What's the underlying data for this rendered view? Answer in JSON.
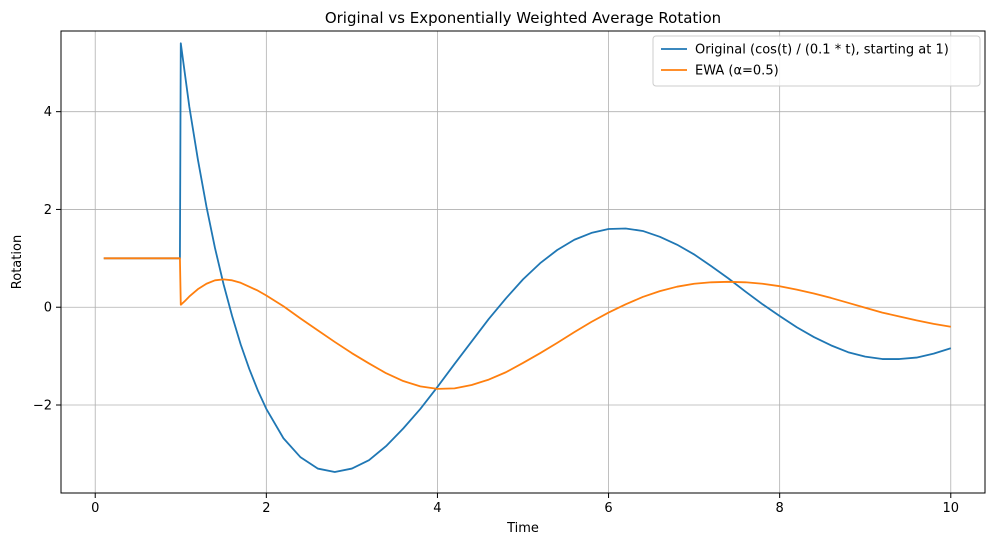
{
  "chart_data": {
    "type": "line",
    "title": "Original vs Exponentially Weighted Average Rotation",
    "xlabel": "Time",
    "ylabel": "Rotation",
    "xlim": [
      -0.4,
      10.4
    ],
    "ylim": [
      -3.8,
      5.65
    ],
    "x_ticks": [
      0,
      2,
      4,
      6,
      8,
      10
    ],
    "y_ticks": [
      -2,
      0,
      2,
      4
    ],
    "x_tick_labels": [
      "0",
      "2",
      "4",
      "6",
      "8",
      "10"
    ],
    "y_tick_labels": [
      "−2",
      "0",
      "2",
      "4"
    ],
    "grid": true,
    "legend_position": "top-right",
    "series": [
      {
        "name": "Original (cos(t) / (0.1 * t), starting at 1)",
        "color": "#1f77b4",
        "points": [
          [
            0.1,
            1.0
          ],
          [
            0.5,
            1.0
          ],
          [
            0.99,
            1.0
          ],
          [
            1.0,
            5.4
          ],
          [
            1.1,
            4.1
          ],
          [
            1.2,
            3.02
          ],
          [
            1.3,
            2.06
          ],
          [
            1.4,
            1.21
          ],
          [
            1.5,
            0.47
          ],
          [
            1.6,
            -0.18
          ],
          [
            1.7,
            -0.76
          ],
          [
            1.8,
            -1.26
          ],
          [
            1.9,
            -1.7
          ],
          [
            2.0,
            -2.08
          ],
          [
            2.2,
            -2.68
          ],
          [
            2.4,
            -3.07
          ],
          [
            2.6,
            -3.3
          ],
          [
            2.8,
            -3.37
          ],
          [
            3.0,
            -3.3
          ],
          [
            3.2,
            -3.13
          ],
          [
            3.4,
            -2.84
          ],
          [
            3.6,
            -2.48
          ],
          [
            3.8,
            -2.08
          ],
          [
            4.0,
            -1.63
          ],
          [
            4.2,
            -1.16
          ],
          [
            4.4,
            -0.7
          ],
          [
            4.6,
            -0.24
          ],
          [
            4.8,
            0.18
          ],
          [
            5.0,
            0.57
          ],
          [
            5.2,
            0.9
          ],
          [
            5.4,
            1.17
          ],
          [
            5.6,
            1.38
          ],
          [
            5.8,
            1.52
          ],
          [
            6.0,
            1.6
          ],
          [
            6.2,
            1.61
          ],
          [
            6.4,
            1.56
          ],
          [
            6.6,
            1.44
          ],
          [
            6.8,
            1.28
          ],
          [
            7.0,
            1.08
          ],
          [
            7.2,
            0.84
          ],
          [
            7.4,
            0.59
          ],
          [
            7.6,
            0.32
          ],
          [
            7.8,
            0.06
          ],
          [
            8.0,
            -0.18
          ],
          [
            8.2,
            -0.41
          ],
          [
            8.4,
            -0.61
          ],
          [
            8.6,
            -0.78
          ],
          [
            8.8,
            -0.92
          ],
          [
            9.0,
            -1.01
          ],
          [
            9.2,
            -1.06
          ],
          [
            9.4,
            -1.06
          ],
          [
            9.6,
            -1.03
          ],
          [
            9.8,
            -0.95
          ],
          [
            10.0,
            -0.84
          ]
        ]
      },
      {
        "name": "EWA (α=0.5)",
        "color": "#ff7f0e",
        "points": [
          [
            0.1,
            1.0
          ],
          [
            0.5,
            1.0
          ],
          [
            0.99,
            1.0
          ],
          [
            1.0,
            0.05
          ],
          [
            1.05,
            0.13
          ],
          [
            1.1,
            0.22
          ],
          [
            1.2,
            0.37
          ],
          [
            1.3,
            0.48
          ],
          [
            1.4,
            0.55
          ],
          [
            1.5,
            0.57
          ],
          [
            1.6,
            0.55
          ],
          [
            1.7,
            0.5
          ],
          [
            1.8,
            0.42
          ],
          [
            1.9,
            0.34
          ],
          [
            2.0,
            0.24
          ],
          [
            2.2,
            0.02
          ],
          [
            2.4,
            -0.23
          ],
          [
            2.6,
            -0.47
          ],
          [
            2.8,
            -0.71
          ],
          [
            3.0,
            -0.94
          ],
          [
            3.2,
            -1.15
          ],
          [
            3.4,
            -1.35
          ],
          [
            3.6,
            -1.51
          ],
          [
            3.8,
            -1.62
          ],
          [
            4.0,
            -1.67
          ],
          [
            4.2,
            -1.66
          ],
          [
            4.4,
            -1.59
          ],
          [
            4.6,
            -1.48
          ],
          [
            4.8,
            -1.33
          ],
          [
            5.0,
            -1.14
          ],
          [
            5.2,
            -0.94
          ],
          [
            5.4,
            -0.73
          ],
          [
            5.6,
            -0.51
          ],
          [
            5.8,
            -0.3
          ],
          [
            6.0,
            -0.11
          ],
          [
            6.2,
            0.06
          ],
          [
            6.4,
            0.21
          ],
          [
            6.6,
            0.33
          ],
          [
            6.8,
            0.42
          ],
          [
            7.0,
            0.48
          ],
          [
            7.2,
            0.51
          ],
          [
            7.4,
            0.52
          ],
          [
            7.6,
            0.51
          ],
          [
            7.8,
            0.48
          ],
          [
            8.0,
            0.43
          ],
          [
            8.2,
            0.36
          ],
          [
            8.4,
            0.28
          ],
          [
            8.6,
            0.19
          ],
          [
            8.8,
            0.09
          ],
          [
            9.0,
            -0.01
          ],
          [
            9.2,
            -0.11
          ],
          [
            9.4,
            -0.19
          ],
          [
            9.6,
            -0.27
          ],
          [
            9.8,
            -0.34
          ],
          [
            10.0,
            -0.4
          ]
        ]
      }
    ]
  }
}
